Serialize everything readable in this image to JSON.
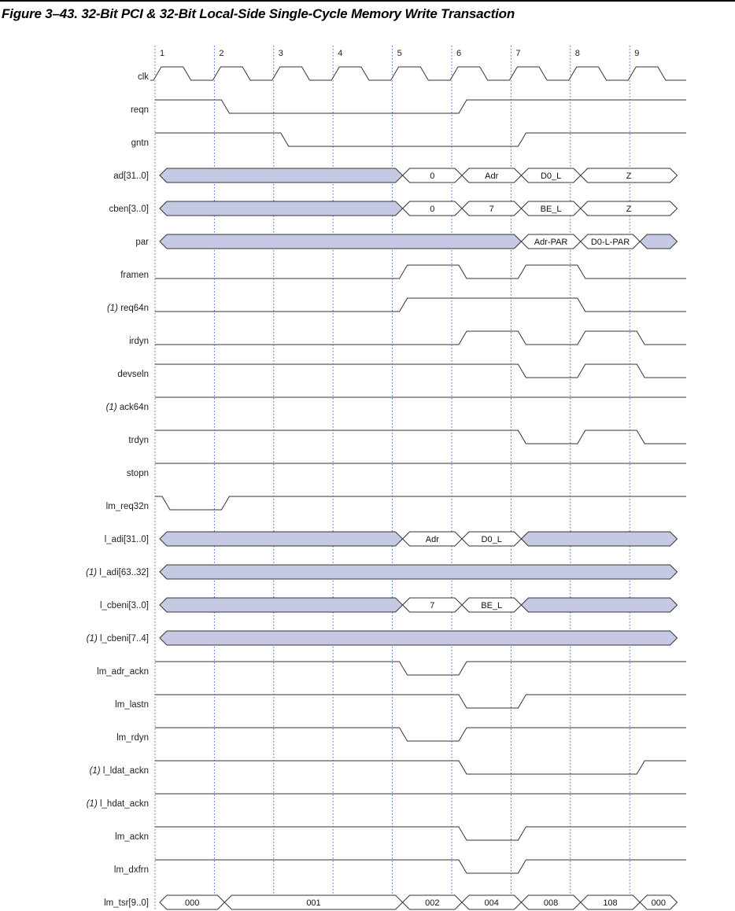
{
  "figure": {
    "title": "Figure 3–43. 32-Bit PCI & 32-Bit Local-Side Single-Cycle Memory Write Transaction",
    "clock_numbers": [
      "1",
      "2",
      "3",
      "4",
      "5",
      "6",
      "7",
      "8",
      "9"
    ]
  },
  "colors": {
    "bus_fill": "#c6c9e4",
    "line": "#333333",
    "grid": "#2f6fd6"
  },
  "signals": [
    {
      "label": "clk",
      "prefix": "",
      "type": "clock"
    },
    {
      "label": "reqn",
      "prefix": "",
      "type": "bit",
      "initial": 1,
      "transitions": [
        [
          2,
          0
        ],
        [
          6,
          1
        ]
      ]
    },
    {
      "label": "gntn",
      "prefix": "",
      "type": "bit",
      "initial": 1,
      "transitions": [
        [
          3,
          0
        ],
        [
          7,
          1
        ]
      ]
    },
    {
      "label": "ad[31..0]",
      "prefix": "",
      "type": "bus",
      "segments": [
        [
          1,
          5,
          ""
        ],
        [
          5,
          6,
          "0"
        ],
        [
          6,
          7,
          "Adr"
        ],
        [
          7,
          8,
          "D0_L"
        ],
        [
          8,
          9.8,
          "Z"
        ]
      ]
    },
    {
      "label": "cben[3..0]",
      "prefix": "",
      "type": "bus",
      "segments": [
        [
          1,
          5,
          ""
        ],
        [
          5,
          6,
          "0"
        ],
        [
          6,
          7,
          "7"
        ],
        [
          7,
          8,
          "BE_L"
        ],
        [
          8,
          9.8,
          "Z"
        ]
      ]
    },
    {
      "label": "par",
      "prefix": "",
      "type": "bus",
      "segments": [
        [
          1,
          7,
          ""
        ],
        [
          7,
          8,
          "Adr-PAR"
        ],
        [
          8,
          9,
          "D0-L-PAR"
        ],
        [
          9,
          9.8,
          ""
        ]
      ]
    },
    {
      "label": "framen",
      "prefix": "",
      "type": "bit",
      "initial": 0,
      "transitions": [
        [
          5,
          1
        ],
        [
          6,
          0
        ],
        [
          7,
          1
        ],
        [
          8,
          0
        ]
      ]
    },
    {
      "label": "req64n",
      "prefix": "(1)",
      "type": "bit",
      "initial": 0,
      "transitions": [
        [
          5,
          1
        ],
        [
          8,
          0
        ]
      ]
    },
    {
      "label": "irdyn",
      "prefix": "",
      "type": "bit",
      "initial": 0,
      "transitions": [
        [
          6,
          1
        ],
        [
          7,
          0
        ],
        [
          8,
          1
        ],
        [
          9,
          0
        ]
      ]
    },
    {
      "label": "devseln",
      "prefix": "",
      "type": "bit",
      "initial": 1,
      "transitions": [
        [
          7,
          0
        ],
        [
          8,
          1
        ],
        [
          9,
          0
        ]
      ]
    },
    {
      "label": "ack64n",
      "prefix": "(1)",
      "type": "bit",
      "initial": 1,
      "transitions": []
    },
    {
      "label": "trdyn",
      "prefix": "",
      "type": "bit",
      "initial": 1,
      "transitions": [
        [
          7,
          0
        ],
        [
          8,
          1
        ],
        [
          9,
          0
        ]
      ]
    },
    {
      "label": "stopn",
      "prefix": "",
      "type": "bit",
      "initial": 1,
      "transitions": []
    },
    {
      "label": "lm_req32n",
      "prefix": "",
      "type": "bit",
      "initial": 1,
      "transitions": [
        [
          1,
          0
        ],
        [
          2,
          1
        ]
      ]
    },
    {
      "label": "l_adi[31..0]",
      "prefix": "",
      "type": "bus",
      "segments": [
        [
          1,
          5,
          ""
        ],
        [
          5,
          6,
          "Adr"
        ],
        [
          6,
          7,
          "D0_L"
        ],
        [
          7,
          9.8,
          ""
        ]
      ]
    },
    {
      "label": "l_adi[63..32]",
      "prefix": "(1)",
      "type": "bus",
      "segments": [
        [
          1,
          9.8,
          ""
        ]
      ]
    },
    {
      "label": "l_cbeni[3..0]",
      "prefix": "",
      "type": "bus",
      "segments": [
        [
          1,
          5,
          ""
        ],
        [
          5,
          6,
          "7"
        ],
        [
          6,
          7,
          "BE_L"
        ],
        [
          7,
          9.8,
          ""
        ]
      ]
    },
    {
      "label": "l_cbeni[7..4]",
      "prefix": "(1)",
      "type": "bus",
      "segments": [
        [
          1,
          9.8,
          ""
        ]
      ]
    },
    {
      "label": "lm_adr_ackn",
      "prefix": "",
      "type": "bit",
      "initial": 1,
      "transitions": [
        [
          5,
          0
        ],
        [
          6,
          1
        ]
      ]
    },
    {
      "label": "lm_lastn",
      "prefix": "",
      "type": "bit",
      "initial": 1,
      "transitions": [
        [
          6,
          0
        ],
        [
          7,
          1
        ]
      ]
    },
    {
      "label": "lm_rdyn",
      "prefix": "",
      "type": "bit",
      "initial": 1,
      "transitions": [
        [
          5,
          0
        ],
        [
          6,
          1
        ]
      ]
    },
    {
      "label": "l_ldat_ackn",
      "prefix": "(1)",
      "type": "bit",
      "initial": 1,
      "transitions": [
        [
          6,
          0
        ],
        [
          9,
          1
        ]
      ]
    },
    {
      "label": "l_hdat_ackn",
      "prefix": "(1)",
      "type": "bit",
      "initial": 1,
      "transitions": []
    },
    {
      "label": "lm_ackn",
      "prefix": "",
      "type": "bit",
      "initial": 1,
      "transitions": [
        [
          6,
          0
        ],
        [
          7,
          1
        ]
      ]
    },
    {
      "label": "lm_dxfrn",
      "prefix": "",
      "type": "bit",
      "initial": 1,
      "transitions": [
        [
          6,
          0
        ],
        [
          7,
          1
        ]
      ]
    },
    {
      "label": "lm_tsr[9..0]",
      "prefix": "",
      "type": "bus",
      "segments": [
        [
          1,
          2,
          "000"
        ],
        [
          2,
          5,
          "001"
        ],
        [
          5,
          6,
          "002"
        ],
        [
          6,
          7,
          "004"
        ],
        [
          7,
          8,
          "008"
        ],
        [
          8,
          9,
          "108"
        ],
        [
          9,
          9.8,
          "000"
        ]
      ]
    }
  ]
}
